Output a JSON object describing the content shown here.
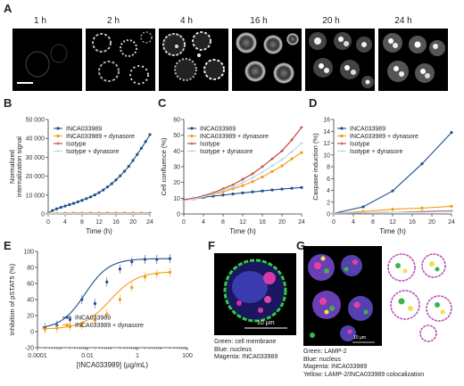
{
  "panels": {
    "A": "A",
    "B": "B",
    "C": "C",
    "D": "D",
    "E": "E",
    "F": "F",
    "G": "G"
  },
  "panelA": {
    "timepoints": [
      "1 h",
      "2 h",
      "4 h",
      "16 h",
      "20 h",
      "24 h"
    ]
  },
  "panelF": {
    "scalebar": "10 µm",
    "caption": [
      "Green: cell membrane",
      "Blue: nucleus",
      "Magenta: INCA033989"
    ]
  },
  "panelG": {
    "scalebar": "10 µm",
    "caption": [
      "Green: LAMP-2",
      "Blue: nucleus",
      "Magenta: INCA033989",
      "Yellow: LAMP-2/INCA033989 colocalization"
    ]
  },
  "colors": {
    "inca": "#1f4e8c",
    "inca_dyn": "#f39c12",
    "isotype": "#c0392b",
    "isotype_dyn": "#b7d3ef"
  },
  "chart_data": [
    {
      "type": "line",
      "panel": "B",
      "xlabel": "Time (h)",
      "ylabel": "Normalized internalization signal",
      "xlim": [
        0,
        24
      ],
      "ylim": [
        0,
        50000
      ],
      "xticks": [
        0,
        4,
        8,
        12,
        16,
        20,
        24
      ],
      "yticks": [
        0,
        10000,
        20000,
        30000,
        40000,
        50000
      ],
      "ytick_labels": [
        "0",
        "10 000",
        "20 000",
        "30 000",
        "40 000",
        "50 000"
      ],
      "legend": [
        "INCA033989",
        "INCA033989 + dynasore",
        "Isotype",
        "Isotype + dynasore"
      ],
      "series": [
        {
          "name": "INCA033989",
          "x": [
            0,
            1,
            2,
            3,
            4,
            5,
            6,
            7,
            8,
            9,
            10,
            11,
            12,
            13,
            14,
            15,
            16,
            17,
            18,
            19,
            20,
            21,
            22,
            23,
            24
          ],
          "y": [
            500,
            1800,
            2700,
            3500,
            4200,
            4900,
            5600,
            6400,
            7200,
            8100,
            9000,
            10100,
            11300,
            12700,
            14300,
            16000,
            18000,
            20200,
            22600,
            25200,
            28300,
            31500,
            34800,
            38300,
            42000
          ]
        },
        {
          "name": "INCA033989 + dynasore",
          "x": [
            0,
            2,
            4,
            6,
            8,
            10,
            12,
            14,
            16,
            18,
            20,
            22,
            24
          ],
          "y": [
            300,
            400,
            450,
            500,
            500,
            500,
            500,
            520,
            520,
            530,
            540,
            540,
            550
          ]
        },
        {
          "name": "Isotype",
          "x": [
            0,
            2,
            4,
            6,
            8,
            10,
            12,
            14,
            16,
            18,
            20,
            22,
            24
          ],
          "y": [
            200,
            250,
            300,
            300,
            300,
            300,
            300,
            320,
            320,
            330,
            330,
            340,
            350
          ]
        },
        {
          "name": "Isotype + dynasore",
          "x": [
            0,
            2,
            4,
            6,
            8,
            10,
            12,
            14,
            16,
            18,
            20,
            22,
            24
          ],
          "y": [
            150,
            200,
            220,
            230,
            240,
            250,
            250,
            260,
            260,
            270,
            270,
            280,
            280
          ]
        }
      ]
    },
    {
      "type": "line",
      "panel": "C",
      "xlabel": "Time (h)",
      "ylabel": "Cell confluence (%)",
      "xlim": [
        0,
        24
      ],
      "ylim": [
        0,
        60
      ],
      "xticks": [
        0,
        4,
        8,
        12,
        16,
        20,
        24
      ],
      "yticks": [
        0,
        10,
        20,
        30,
        40,
        50,
        60
      ],
      "legend": [
        "INCA033989",
        "INCA033989 + dynasore",
        "Isotype",
        "Isotype + dynasore"
      ],
      "series": [
        {
          "name": "INCA033989",
          "x": [
            0,
            2,
            4,
            6,
            8,
            10,
            12,
            14,
            16,
            18,
            20,
            22,
            24
          ],
          "y": [
            9,
            9.5,
            10.5,
            11.3,
            12,
            12.7,
            13.4,
            14,
            14.6,
            15.2,
            15.8,
            16.3,
            16.8
          ]
        },
        {
          "name": "INCA033989 + dynasore",
          "x": [
            0,
            2,
            4,
            6,
            8,
            10,
            12,
            14,
            16,
            18,
            20,
            22,
            24
          ],
          "y": [
            8.5,
            9.5,
            11,
            12.5,
            14,
            16,
            18,
            20.5,
            23.5,
            27,
            30.5,
            35,
            39
          ]
        },
        {
          "name": "Isotype",
          "x": [
            0,
            2,
            4,
            6,
            8,
            10,
            12,
            14,
            16,
            18,
            20,
            22,
            24
          ],
          "y": [
            9,
            10,
            11.5,
            13.5,
            16,
            18.5,
            22,
            25.5,
            30,
            35,
            40,
            47,
            55
          ]
        },
        {
          "name": "Isotype + dynasore",
          "x": [
            0,
            2,
            4,
            6,
            8,
            10,
            12,
            14,
            16,
            18,
            20,
            22,
            24
          ],
          "y": [
            8.5,
            9.5,
            11,
            12.8,
            15,
            17,
            20,
            23,
            26.5,
            30.5,
            34.5,
            39.5,
            45
          ]
        }
      ]
    },
    {
      "type": "line",
      "panel": "D",
      "xlabel": "Time (h)",
      "ylabel": "Caspase induction (%)",
      "xlim": [
        0,
        24
      ],
      "ylim": [
        0,
        16
      ],
      "xticks": [
        0,
        4,
        8,
        12,
        16,
        20,
        24
      ],
      "yticks": [
        0,
        2,
        4,
        6,
        8,
        10,
        12,
        14,
        16
      ],
      "legend": [
        "INCA033989",
        "INCA033989 + dynasore",
        "Isotype",
        "Isotype + dynasore"
      ],
      "series": [
        {
          "name": "INCA033989",
          "x": [
            0,
            6,
            12,
            18,
            24
          ],
          "y": [
            0.1,
            1.2,
            3.9,
            8.5,
            13.8
          ]
        },
        {
          "name": "INCA033989 + dynasore",
          "x": [
            0,
            6,
            12,
            18,
            24
          ],
          "y": [
            0.1,
            0.4,
            0.8,
            1.0,
            1.3
          ]
        },
        {
          "name": "Isotype",
          "x": [
            0,
            6,
            12,
            18,
            24
          ],
          "y": [
            0.1,
            0.2,
            0.3,
            0.4,
            0.5
          ]
        },
        {
          "name": "Isotype + dynasore",
          "x": [
            0,
            6,
            12,
            18,
            24
          ],
          "y": [
            0.1,
            0.2,
            0.3,
            0.3,
            0.4
          ]
        }
      ]
    },
    {
      "type": "scatter",
      "panel": "E",
      "xlabel": "[INCA033989] (µg/mL)",
      "ylabel": "Inhibition of pSTAT5 (%)",
      "xscale": "log",
      "xlim": [
        0.0001,
        100
      ],
      "ylim": [
        -20,
        100
      ],
      "xticks": [
        0.0001,
        0.01,
        1,
        100
      ],
      "xtick_labels": [
        "0.0001",
        "0.01",
        "1",
        "100"
      ],
      "yticks": [
        -20,
        0,
        20,
        40,
        60,
        80,
        100
      ],
      "legend": [
        "INCA033989",
        "INCA033989 + dynasore"
      ],
      "series": [
        {
          "name": "INCA033989",
          "x": [
            0.0002,
            0.0006,
            0.002,
            0.006,
            0.02,
            0.06,
            0.2,
            0.6,
            2,
            6,
            20
          ],
          "y": [
            5,
            8,
            15,
            40,
            35,
            62,
            78,
            87,
            90,
            90,
            91
          ]
        },
        {
          "name": "INCA033989 + dynasore",
          "x": [
            0.0002,
            0.0006,
            0.002,
            0.006,
            0.02,
            0.06,
            0.2,
            0.6,
            2,
            6,
            20
          ],
          "y": [
            3,
            4,
            6,
            8,
            14,
            22,
            40,
            55,
            68,
            72,
            74
          ]
        }
      ]
    }
  ]
}
